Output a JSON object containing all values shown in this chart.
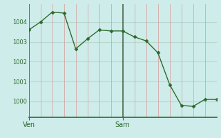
{
  "x": [
    0,
    1,
    2,
    3,
    4,
    5,
    6,
    7,
    8,
    9,
    10,
    11,
    12,
    13,
    14,
    15,
    16
  ],
  "y": [
    1003.6,
    1004.0,
    1004.5,
    1004.45,
    1002.65,
    1003.15,
    1003.6,
    1003.55,
    1003.55,
    1003.25,
    1003.05,
    1002.45,
    1000.85,
    999.8,
    999.75,
    1000.1,
    1000.1
  ],
  "line_color": "#2d6a2d",
  "marker_color": "#2d6a2d",
  "bg_color": "#ceecea",
  "grid_h_color": "#b8d8d0",
  "grid_v_color": "#d4a8a8",
  "day_line_color": "#4a6a4a",
  "ven_x": 0,
  "sam_x": 8,
  "ven_label": "Ven",
  "sam_label": "Sam",
  "yticks": [
    1000,
    1001,
    1002,
    1003,
    1004
  ],
  "ylim": [
    999.2,
    1004.9
  ],
  "xlim": [
    0,
    16
  ]
}
